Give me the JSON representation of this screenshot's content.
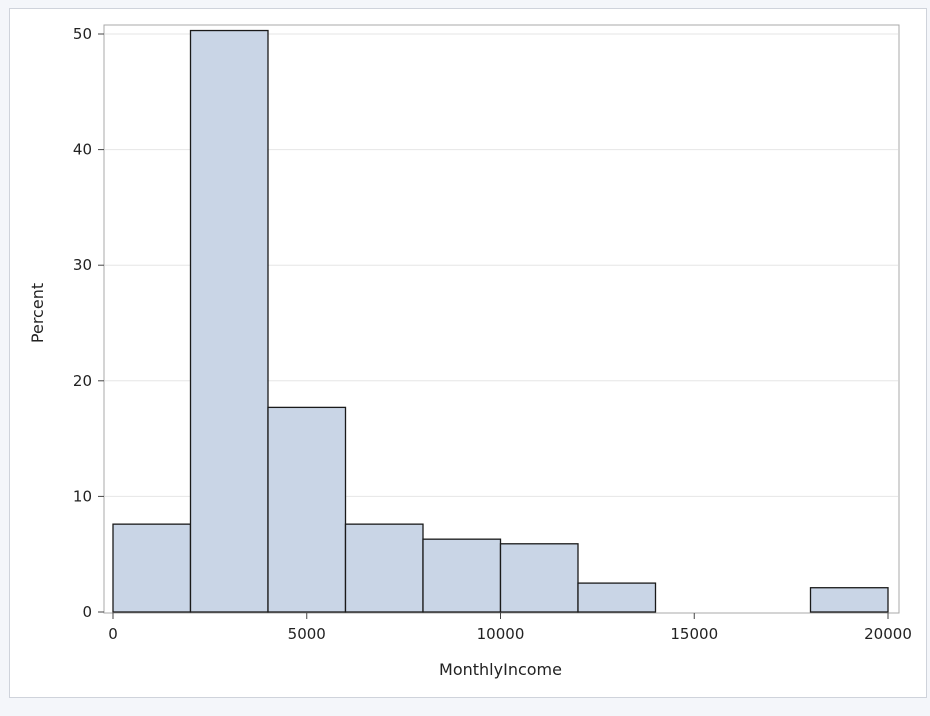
{
  "chart_data": {
    "type": "bar",
    "subtype": "histogram",
    "xlabel": "MonthlyIncome",
    "ylabel": "Percent",
    "xlim": [
      0,
      20000
    ],
    "ylim": [
      0,
      50
    ],
    "x_ticks": [
      0,
      5000,
      10000,
      15000,
      20000
    ],
    "y_ticks": [
      0,
      10,
      20,
      30,
      40,
      50
    ],
    "bin_width": 2000,
    "bins": [
      {
        "start": 0,
        "end": 2000,
        "value": 7.6
      },
      {
        "start": 2000,
        "end": 4000,
        "value": 50.3
      },
      {
        "start": 4000,
        "end": 6000,
        "value": 17.7
      },
      {
        "start": 6000,
        "end": 8000,
        "value": 7.6
      },
      {
        "start": 8000,
        "end": 10000,
        "value": 6.3
      },
      {
        "start": 10000,
        "end": 12000,
        "value": 5.9
      },
      {
        "start": 12000,
        "end": 14000,
        "value": 2.5
      },
      {
        "start": 14000,
        "end": 16000,
        "value": 0
      },
      {
        "start": 16000,
        "end": 18000,
        "value": 0
      },
      {
        "start": 18000,
        "end": 20000,
        "value": 2.1
      }
    ],
    "grid": "horizontal",
    "legend": "none",
    "colors": {
      "bar_fill": "#c9d5e6",
      "bar_stroke": "#1a1a1a",
      "grid": "#e6e6e6",
      "frame": "#a9a9a9"
    }
  }
}
